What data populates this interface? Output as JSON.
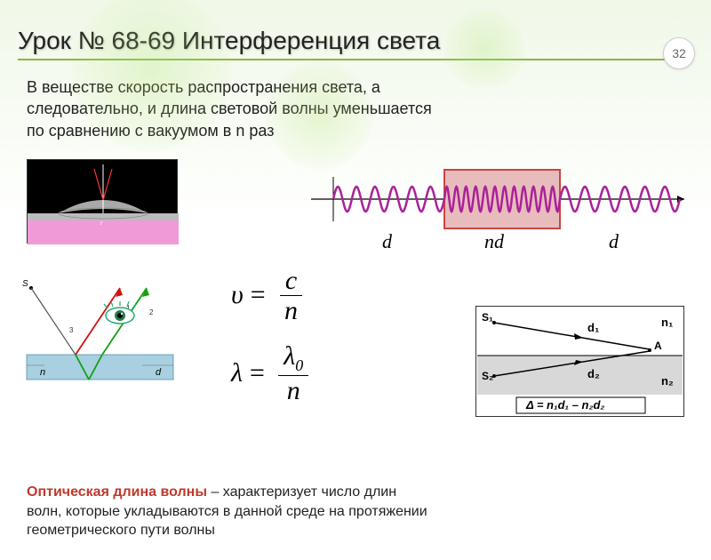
{
  "page_number": "32",
  "title": "Урок № 68-69 Интерференция света",
  "intro_line1": "В веществе скорость распространения света, а",
  "intro_line2": "следовательно, и длина световой волны уменьшается",
  "intro_line3": "по сравнению с вакуумом в n раз",
  "formula1_lhs": "υ",
  "formula1_num": "c",
  "formula1_den": "n",
  "formula2_lhs": "λ",
  "formula2_num": "λ",
  "formula2_sub": "0",
  "formula2_den": "n",
  "wave": {
    "d_left": "d",
    "nd": "nd",
    "d_right": "d",
    "medium_color": "#e8bcbc",
    "medium_border": "#cc4444",
    "wave_color": "#aa2299",
    "cycles_outside": 6,
    "cycles_inside": 12,
    "amplitude": 14
  },
  "newton": {
    "pink": "#f09ad8",
    "gray": "#bbbbbb",
    "red_ray": "#ff3333"
  },
  "thinfilm": {
    "label_S": "S",
    "label_n": "n",
    "label_d": "d",
    "air": "#d8ecf4",
    "film": "#a8d0e0",
    "ray_red": "#d01010",
    "ray_green": "#10a010",
    "sep": "#888"
  },
  "pathdiag": {
    "S1": "S₁",
    "S2": "S₂",
    "d1": "d₁",
    "d2": "d₂",
    "n1": "n₁",
    "n2": "n₂",
    "A": "A",
    "delta": "Δ = n₁d₁ – n₂d₂",
    "medium_fill": "#d8d8d8"
  },
  "footer_hl": "Оптическая длина волны",
  "footer_rest1": " – характеризует число длин",
  "footer_rest2": "волн, которые укладываются в данной среде на протяжении",
  "footer_rest3": "геометрического пути волны",
  "colors": {
    "accent": "#88b844",
    "bg_top": "#f0f8e8"
  }
}
